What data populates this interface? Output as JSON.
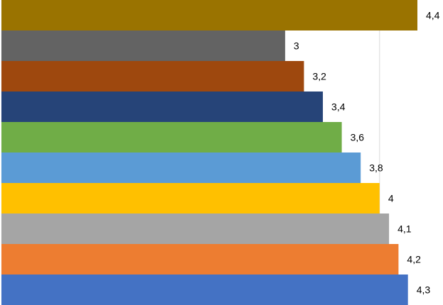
{
  "chart_data": {
    "type": "bar",
    "orientation": "horizontal",
    "categories": [
      "",
      "",
      "",
      "",
      "",
      "",
      "",
      "",
      "",
      ""
    ],
    "values": [
      4.4,
      3,
      3.2,
      3.4,
      3.6,
      3.8,
      4,
      4.1,
      4.2,
      4.3
    ],
    "labels": [
      "4,4",
      "3",
      "3,2",
      "3,4",
      "3,6",
      "3,8",
      "4",
      "4,1",
      "4,2",
      "4,3"
    ],
    "colors": [
      "#9A7300",
      "#636363",
      "#9E480E",
      "#264478",
      "#70AD47",
      "#5B9BD5",
      "#FFC000",
      "#A5A5A5",
      "#ED7D31",
      "#4472C4"
    ],
    "xlim": [
      0,
      4.4
    ],
    "gridline_values": [
      1,
      2,
      3,
      4
    ],
    "gridline_color": "#d9d9d9",
    "grid": true,
    "title": "",
    "xlabel": "",
    "ylabel": ""
  }
}
